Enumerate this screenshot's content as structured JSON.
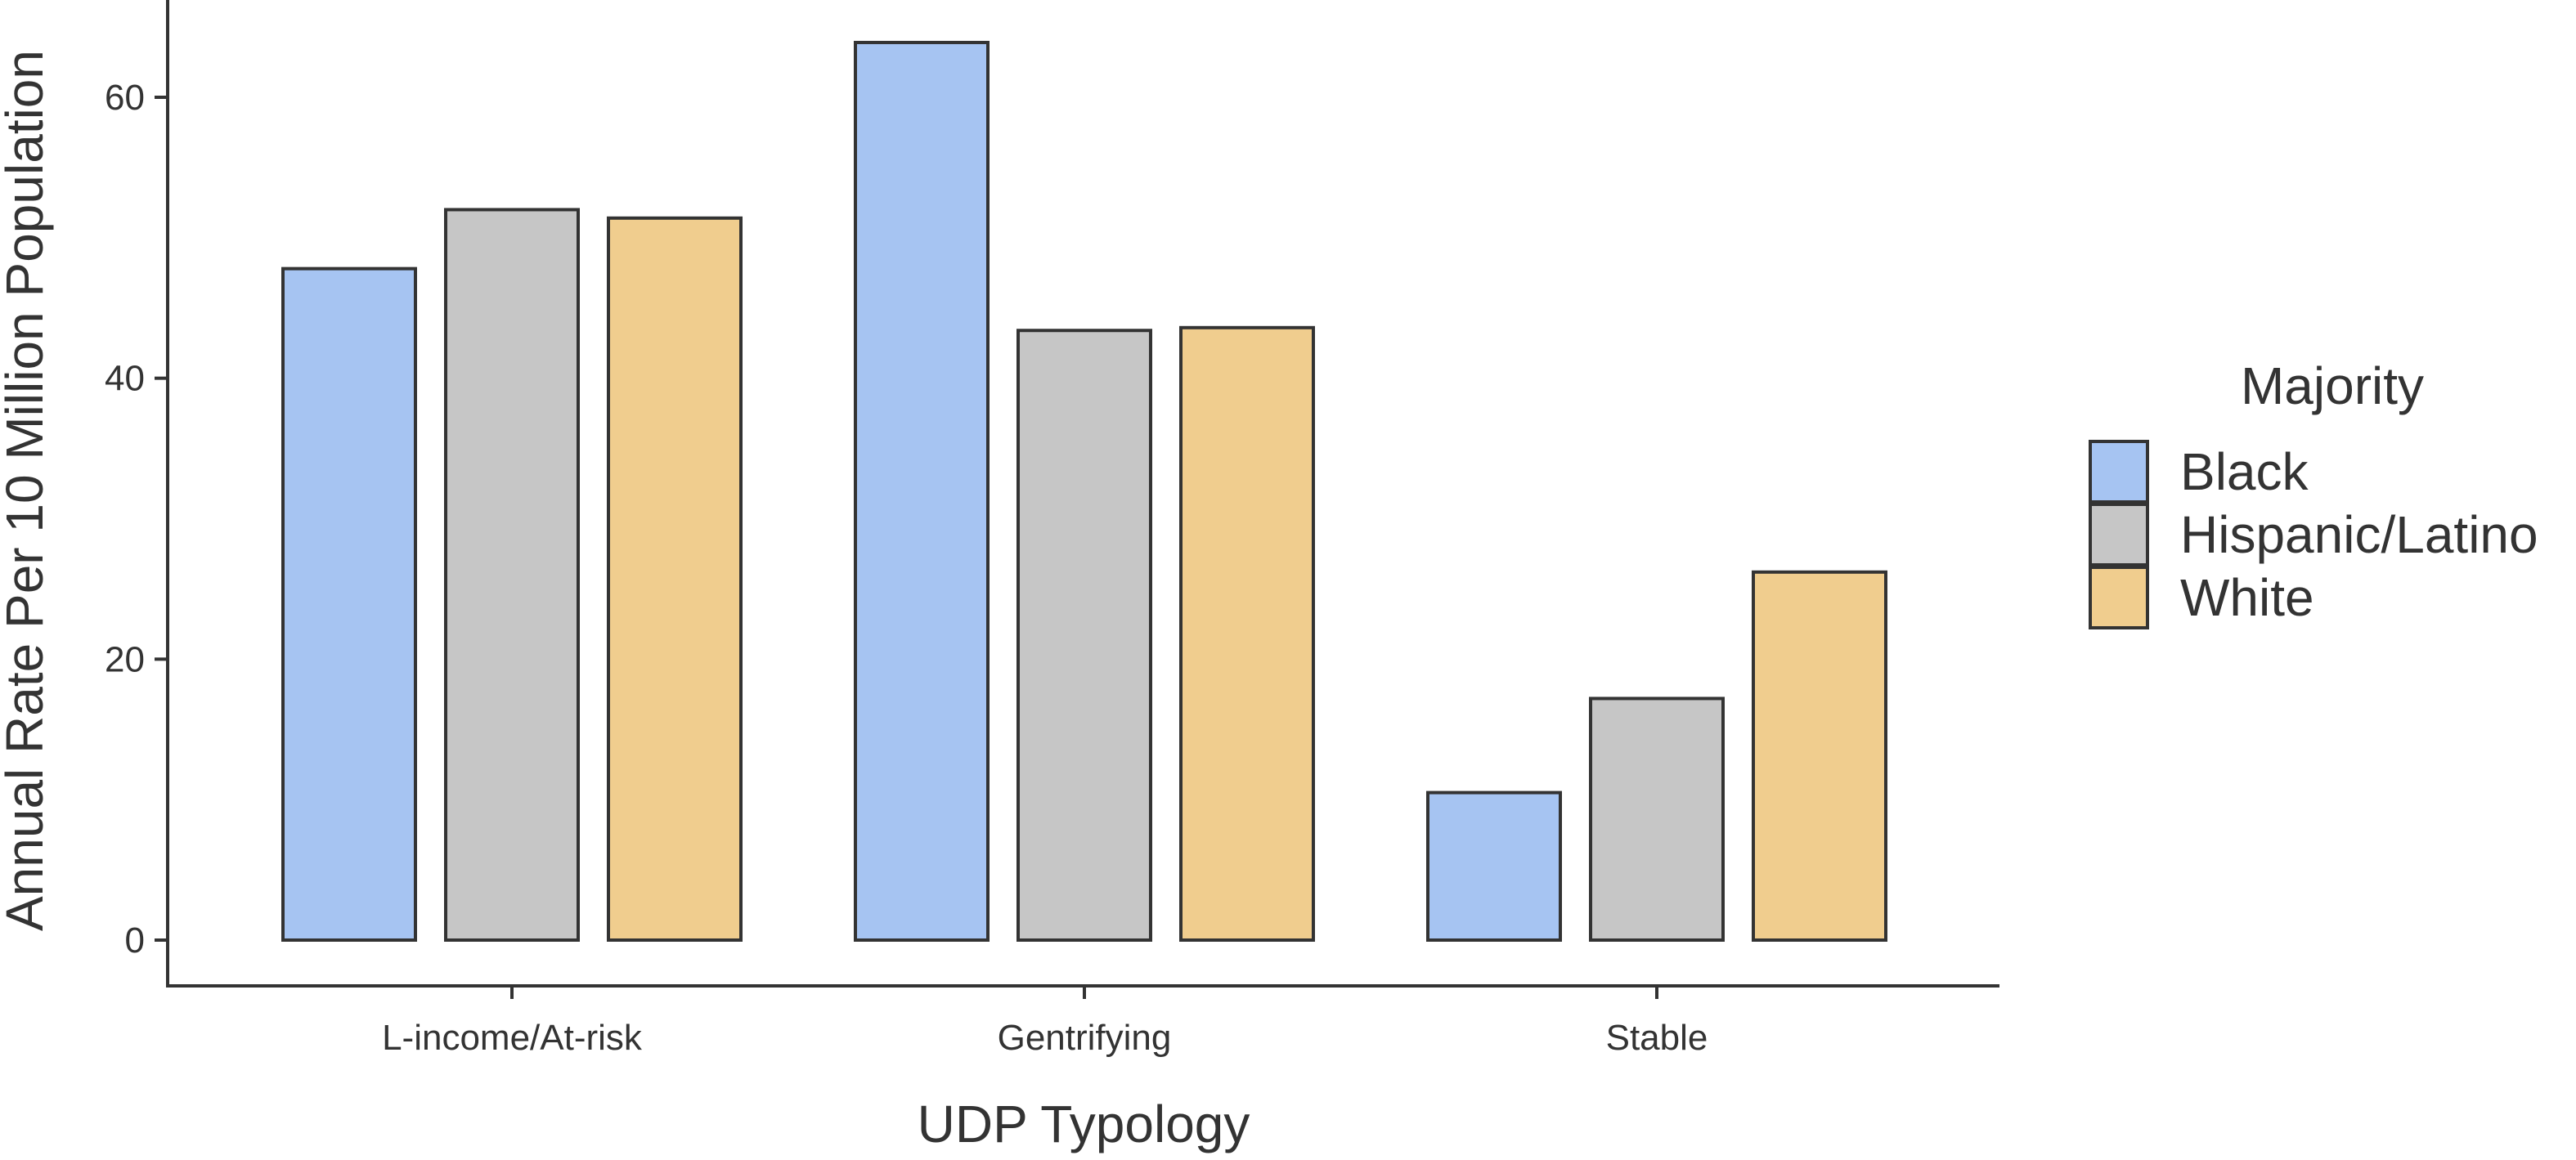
{
  "chart_data": {
    "type": "bar",
    "title": "",
    "xlabel": "UDP Typology",
    "ylabel": "Annual Rate Per 10 Million Population",
    "categories": [
      "L-income/At-risk",
      "Gentrifying",
      "Stable"
    ],
    "series": [
      {
        "name": "Black",
        "color": "#a6c4f2",
        "values": [
          47.8,
          63.9,
          10.5
        ]
      },
      {
        "name": "Hispanic/Latino",
        "color": "#c6c6c6",
        "values": [
          52.0,
          43.4,
          17.2
        ]
      },
      {
        "name": "White",
        "color": "#f0cd8e",
        "values": [
          51.4,
          43.6,
          26.2
        ]
      }
    ],
    "yticks": [
      0,
      20,
      40,
      60
    ],
    "ylim": [
      0,
      66
    ],
    "grid": false,
    "legend": {
      "title": "Majority",
      "placement": "right"
    },
    "bar_outline_color": "#333333"
  }
}
